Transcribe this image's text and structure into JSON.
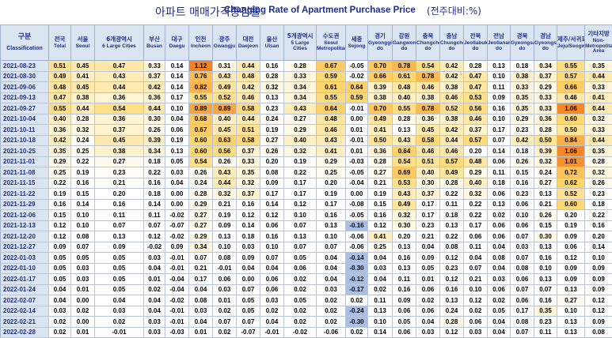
{
  "title": {
    "ko": "아파트 매매가격증감률",
    "en": "Changing Rate of Apartment Purchase Price",
    "unit": "(전주대비:%)"
  },
  "colors": {
    "header_bg": "#dbe5f1",
    "header_text": "#1f2f8a",
    "heat_low": "#fff5d8",
    "heat_mid": "#ffd86e",
    "heat_high": "#f5821e",
    "cool": "#a9bfe4"
  },
  "columns": [
    {
      "ko": "구분",
      "en": "Classification"
    },
    {
      "ko": "전국",
      "en": "Total"
    },
    {
      "ko": "서울",
      "en": "Seoul"
    },
    {
      "ko": "6개광역시",
      "en": "6 Large Cities"
    },
    {
      "ko": "부산",
      "en": "Busan"
    },
    {
      "ko": "대구",
      "en": "Daegu"
    },
    {
      "ko": "인천",
      "en": "Incheon"
    },
    {
      "ko": "광주",
      "en": "Gwangju"
    },
    {
      "ko": "대전",
      "en": "Daejeon"
    },
    {
      "ko": "울산",
      "en": "Ulsan"
    },
    {
      "ko": "5개광역시",
      "en": "5 Large Cities"
    },
    {
      "ko": "수도권",
      "en": "Seoul Metropolitan"
    },
    {
      "ko": "세종",
      "en": "Sejong"
    },
    {
      "ko": "경기",
      "en": "Gyeonggi-do"
    },
    {
      "ko": "강원",
      "en": "Gangwon-do"
    },
    {
      "ko": "충북",
      "en": "Chungcheongbuk-do"
    },
    {
      "ko": "충남",
      "en": "Chungcheongnam-do"
    },
    {
      "ko": "전북",
      "en": "Jeollabuk-do"
    },
    {
      "ko": "전남",
      "en": "Jeollanam-do"
    },
    {
      "ko": "경북",
      "en": "Gyeongsangbuk-do"
    },
    {
      "ko": "경남",
      "en": "Gyeongsangnam-do"
    },
    {
      "ko": "제주/서귀포",
      "en": "Jeju/Seogwipo"
    },
    {
      "ko": "기타지방",
      "en": "Non-Metropolitan Area"
    }
  ],
  "rows": [
    {
      "date": "2021-08-23",
      "values": [
        "0.51",
        "0.45",
        "0.47",
        "0.33",
        "0.14",
        "1.12",
        "0.31",
        "0.44",
        "0.16",
        "0.28",
        "0.67",
        "-0.05",
        "0.70",
        "0.78",
        "0.54",
        "0.42",
        "0.28",
        "0.13",
        "0.18",
        "0.34",
        "0.55",
        "0.35"
      ]
    },
    {
      "date": "2021-08-30",
      "values": [
        "0.49",
        "0.41",
        "0.43",
        "0.37",
        "0.14",
        "0.76",
        "0.43",
        "0.48",
        "0.28",
        "0.33",
        "0.59",
        "-0.02",
        "0.66",
        "0.61",
        "0.78",
        "0.42",
        "0.47",
        "0.10",
        "0.38",
        "0.37",
        "0.57",
        "0.44"
      ]
    },
    {
      "date": "2021-09-06",
      "values": [
        "0.48",
        "0.45",
        "0.44",
        "0.42",
        "0.14",
        "0.82",
        "0.49",
        "0.42",
        "0.32",
        "0.34",
        "0.61",
        "0.64",
        "0.39",
        "0.48",
        "0.46",
        "0.38",
        "0.47",
        "0.11",
        "0.33",
        "0.29",
        "0.66",
        "0.33"
      ]
    },
    {
      "date": "2021-09-13",
      "values": [
        "0.47",
        "0.38",
        "0.36",
        "0.36",
        "0.17",
        "0.55",
        "0.52",
        "0.46",
        "0.13",
        "0.34",
        "0.55",
        "0.59",
        "0.38",
        "0.40",
        "0.38",
        "0.46",
        "0.53",
        "0.09",
        "0.35",
        "0.33",
        "0.46",
        "0.41"
      ]
    },
    {
      "date": "2021-09-27",
      "values": [
        "0.55",
        "0.44",
        "0.54",
        "0.44",
        "0.10",
        "0.89",
        "0.89",
        "0.58",
        "0.23",
        "0.43",
        "0.64",
        "-0.01",
        "0.70",
        "0.55",
        "0.78",
        "0.52",
        "0.56",
        "0.16",
        "0.35",
        "0.33",
        "1.06",
        "0.44"
      ]
    },
    {
      "date": "2021-10-04",
      "values": [
        "0.40",
        "0.28",
        "0.36",
        "0.30",
        "0.04",
        "0.68",
        "0.40",
        "0.44",
        "0.24",
        "0.27",
        "0.48",
        "0.00",
        "0.49",
        "0.28",
        "0.36",
        "0.38",
        "0.46",
        "0.10",
        "0.29",
        "0.36",
        "0.60",
        "0.32"
      ]
    },
    {
      "date": "2021-10-11",
      "values": [
        "0.36",
        "0.32",
        "0.37",
        "0.26",
        "0.06",
        "0.67",
        "0.45",
        "0.51",
        "0.19",
        "0.29",
        "0.46",
        "0.01",
        "0.41",
        "0.13",
        "0.45",
        "0.42",
        "0.37",
        "0.17",
        "0.23",
        "0.28",
        "0.50",
        "0.33"
      ]
    },
    {
      "date": "2021-10-18",
      "values": [
        "0.42",
        "0.24",
        "0.45",
        "0.39",
        "0.19",
        "0.60",
        "0.63",
        "0.58",
        "0.27",
        "0.40",
        "0.43",
        "-0.01",
        "0.50",
        "0.43",
        "0.58",
        "0.44",
        "0.57",
        "0.07",
        "0.42",
        "0.50",
        "0.84",
        "0.44"
      ]
    },
    {
      "date": "2021-10-25",
      "values": [
        "0.35",
        "0.25",
        "0.38",
        "0.34",
        "0.13",
        "0.60",
        "0.56",
        "0.37",
        "0.26",
        "0.32",
        "0.41",
        "0.01",
        "0.36",
        "0.64",
        "0.46",
        "0.46",
        "0.20",
        "0.14",
        "0.18",
        "0.39",
        "1.06",
        "0.35"
      ]
    },
    {
      "date": "2021-11-01",
      "values": [
        "0.29",
        "0.22",
        "0.27",
        "0.18",
        "0.05",
        "0.54",
        "0.26",
        "0.33",
        "0.20",
        "0.19",
        "0.29",
        "-0.03",
        "0.28",
        "0.54",
        "0.51",
        "0.57",
        "0.48",
        "0.06",
        "0.26",
        "0.32",
        "1.01",
        "0.28"
      ]
    },
    {
      "date": "2021-11-08",
      "values": [
        "0.25",
        "0.19",
        "0.23",
        "0.22",
        "0.03",
        "0.26",
        "0.43",
        "0.35",
        "0.08",
        "0.22",
        "0.25",
        "-0.05",
        "0.27",
        "0.69",
        "0.40",
        "0.49",
        "0.29",
        "0.11",
        "0.15",
        "0.24",
        "0.72",
        "0.32"
      ]
    },
    {
      "date": "2021-11-15",
      "values": [
        "0.22",
        "0.16",
        "0.21",
        "0.16",
        "0.04",
        "0.24",
        "0.44",
        "0.32",
        "0.09",
        "0.17",
        "0.20",
        "-0.04",
        "0.21",
        "0.53",
        "0.30",
        "0.28",
        "0.40",
        "0.18",
        "0.16",
        "0.27",
        "0.62",
        "0.26"
      ]
    },
    {
      "date": "2021-11-22",
      "values": [
        "0.19",
        "0.15",
        "0.20",
        "0.18",
        "0.00",
        "0.28",
        "0.32",
        "0.37",
        "0.17",
        "0.17",
        "0.19",
        "0.00",
        "0.19",
        "0.43",
        "0.37",
        "0.22",
        "0.32",
        "0.06",
        "0.23",
        "0.13",
        "0.52",
        "0.23"
      ]
    },
    {
      "date": "2021-11-29",
      "values": [
        "0.16",
        "0.14",
        "0.16",
        "0.14",
        "0.00",
        "0.29",
        "0.21",
        "0.16",
        "0.14",
        "0.12",
        "0.17",
        "-0.08",
        "0.15",
        "0.49",
        "0.17",
        "0.11",
        "0.22",
        "0.13",
        "0.06",
        "0.21",
        "0.60",
        "0.18"
      ]
    },
    {
      "date": "2021-12-06",
      "values": [
        "0.15",
        "0.10",
        "0.11",
        "0.11",
        "-0.02",
        "0.27",
        "0.19",
        "0.12",
        "0.12",
        "0.10",
        "0.16",
        "-0.05",
        "0.16",
        "0.32",
        "0.17",
        "0.18",
        "0.22",
        "0.02",
        "0.10",
        "0.26",
        "0.20",
        "0.22"
      ]
    },
    {
      "date": "2021-12-13",
      "values": [
        "0.12",
        "0.10",
        "0.07",
        "0.07",
        "-0.07",
        "0.27",
        "0.09",
        "0.14",
        "0.06",
        "0.07",
        "0.13",
        "-0.16",
        "0.12",
        "0.30",
        "0.23",
        "0.13",
        "0.17",
        "0.06",
        "0.06",
        "0.15",
        "0.19",
        "0.16"
      ]
    },
    {
      "date": "2021-12-20",
      "values": [
        "0.12",
        "0.08",
        "0.13",
        "0.12",
        "-0.02",
        "0.29",
        "0.13",
        "0.18",
        "0.16",
        "0.13",
        "0.10",
        "-0.06",
        "0.41",
        "0.20",
        "0.21",
        "0.22",
        "0.06",
        "0.06",
        "0.07",
        "0.30",
        "0.09",
        "0.20"
      ]
    },
    {
      "date": "2021-12-27",
      "values": [
        "0.09",
        "0.07",
        "0.09",
        "-0.02",
        "0.09",
        "0.34",
        "0.10",
        "0.03",
        "0.10",
        "0.07",
        "0.07",
        "-0.06",
        "0.25",
        "0.13",
        "0.04",
        "0.08",
        "0.11",
        "0.04",
        "0.03",
        "0.13",
        "0.06",
        "0.14"
      ]
    },
    {
      "date": "2022-01-03",
      "values": [
        "0.05",
        "0.05",
        "0.05",
        "0.03",
        "-0.01",
        "0.07",
        "0.08",
        "0.09",
        "0.07",
        "0.05",
        "0.04",
        "-0.14",
        "0.04",
        "0.16",
        "0.09",
        "0.12",
        "0.04",
        "0.08",
        "0.07",
        "0.16",
        "0.12",
        "0.10"
      ]
    },
    {
      "date": "2022-01-10",
      "values": [
        "0.05",
        "0.03",
        "0.05",
        "0.04",
        "-0.01",
        "0.21",
        "-0.01",
        "0.04",
        "0.04",
        "0.06",
        "0.04",
        "-0.30",
        "0.03",
        "0.13",
        "0.05",
        "0.23",
        "0.07",
        "0.04",
        "0.08",
        "0.10",
        "0.09",
        "0.09"
      ]
    },
    {
      "date": "2022-01-17",
      "values": [
        "0.05",
        "0.03",
        "0.05",
        "0.01",
        "-0.04",
        "0.17",
        "0.06",
        "0.00",
        "0.06",
        "0.02",
        "0.04",
        "-0.12",
        "0.04",
        "0.11",
        "0.01",
        "0.12",
        "0.21",
        "0.03",
        "0.06",
        "0.13",
        "0.09",
        "0.09"
      ]
    },
    {
      "date": "2022-01-24",
      "values": [
        "0.04",
        "0.01",
        "0.05",
        "0.02",
        "-0.04",
        "0.04",
        "0.03",
        "0.07",
        "0.06",
        "0.02",
        "0.03",
        "-0.17",
        "0.02",
        "0.16",
        "0.06",
        "0.16",
        "0.10",
        "0.06",
        "0.07",
        "0.07",
        "0.13",
        "0.09"
      ]
    },
    {
      "date": "2022-02-07",
      "values": [
        "0.04",
        "0.00",
        "0.04",
        "0.04",
        "-0.02",
        "0.08",
        "0.01",
        "0.05",
        "0.03",
        "0.05",
        "0.02",
        "0.02",
        "0.11",
        "0.09",
        "0.02",
        "0.13",
        "0.12",
        "0.02",
        "0.06",
        "0.16",
        "0.27",
        "0.12"
      ]
    },
    {
      "date": "2022-02-14",
      "values": [
        "0.03",
        "0.02",
        "0.03",
        "0.04",
        "-0.01",
        "0.03",
        "0.02",
        "0.05",
        "0.02",
        "0.02",
        "0.02",
        "-0.24",
        "0.13",
        "0.06",
        "0.06",
        "0.24",
        "0.02",
        "0.05",
        "0.17",
        "0.35",
        "0.10",
        "0.12"
      ]
    },
    {
      "date": "2022-02-21",
      "values": [
        "0.02",
        "0.00",
        "0.02",
        "0.03",
        "-0.01",
        "0.04",
        "0.07",
        "0.07",
        "0.04",
        "0.02",
        "0.02",
        "-0.30",
        "0.10",
        "0.05",
        "0.04",
        "0.28",
        "0.06",
        "0.04",
        "0.08",
        "0.23",
        "0.13",
        "0.09"
      ]
    },
    {
      "date": "2022-02-28",
      "values": [
        "0.02",
        "0.01",
        "-0.01",
        "0.03",
        "-0.03",
        "0.01",
        "0.02",
        "-0.07",
        "-0.01",
        "-0.02",
        "-0.06",
        "0.02",
        "0.14",
        "0.06",
        "0.03",
        "0.12",
        "0.03",
        "0.04",
        "0.07",
        "0.11",
        "0.13",
        "0.08"
      ]
    }
  ]
}
